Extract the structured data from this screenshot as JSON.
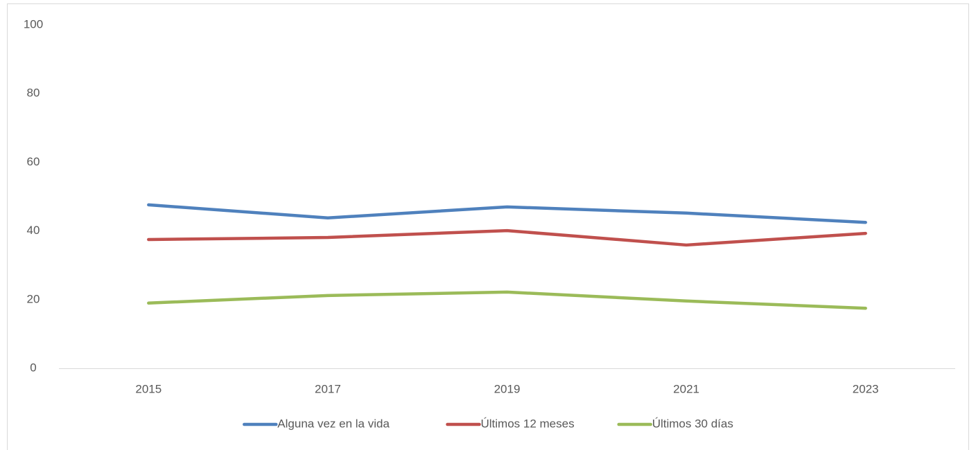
{
  "chart_data": {
    "type": "line",
    "categories": [
      "2015",
      "2017",
      "2019",
      "2021",
      "2023"
    ],
    "series": [
      {
        "name": "Alguna vez en la vida",
        "color": "#4f81bd",
        "values": [
          47.6,
          43.8,
          47.0,
          45.2,
          42.5
        ]
      },
      {
        "name": "Últimos 12 meses",
        "color": "#c0504d",
        "values": [
          37.5,
          38.1,
          40.1,
          35.9,
          39.3
        ]
      },
      {
        "name": "Últimos 30 días",
        "color": "#9bbb59",
        "values": [
          19.0,
          21.2,
          22.2,
          19.6,
          17.5
        ]
      }
    ],
    "ylim": [
      0,
      100
    ],
    "yticks": [
      0,
      20,
      40,
      60,
      80,
      100
    ],
    "grid": false,
    "legend": "bottom"
  }
}
